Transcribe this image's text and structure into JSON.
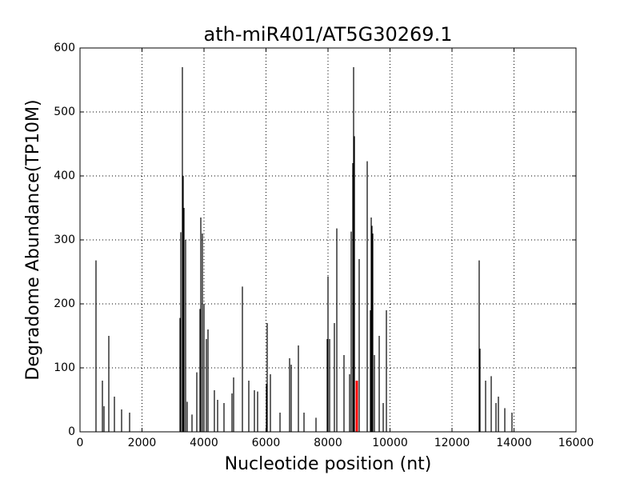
{
  "chart_data": {
    "type": "stem",
    "title": "ath-miR401/AT5G30269.1",
    "xlabel": "Nucleotide position (nt)",
    "ylabel": "Degradome Abundance(TP10M)",
    "xlim": [
      0,
      16000
    ],
    "ylim": [
      0,
      600
    ],
    "xticks": [
      0,
      2000,
      4000,
      6000,
      8000,
      10000,
      12000,
      14000,
      16000
    ],
    "yticks": [
      0,
      100,
      200,
      300,
      400,
      500,
      600
    ],
    "grid": true,
    "series": [
      {
        "color": "#000000",
        "x": [
          516,
          723,
          774,
          929,
          1110,
          1342,
          1600,
          3226,
          3252,
          3303,
          3329,
          3355,
          3406,
          3458,
          3613,
          3768,
          3871,
          3897,
          3948,
          4000,
          4077,
          4129,
          4335,
          4439,
          4645,
          4903,
          4955,
          5239,
          5445,
          5626,
          5729,
          6013,
          6039,
          6142,
          6452,
          6761,
          6813,
          7045,
          7226,
          7613,
          7974,
          8000,
          8052,
          8206,
          8284,
          8516,
          8697,
          8748,
          8800,
          8826,
          8852,
          9006,
          9265,
          9368,
          9394,
          9419,
          9445,
          9497,
          9652,
          9781,
          9884,
          12877,
          12903,
          13084,
          13265,
          13419,
          13497,
          13703,
          13935
        ],
        "values": [
          268,
          80,
          40,
          150,
          55,
          35,
          30,
          178,
          312,
          570,
          400,
          350,
          300,
          47,
          27,
          93,
          192,
          335,
          310,
          200,
          145,
          160,
          65,
          50,
          45,
          60,
          85,
          227,
          80,
          65,
          63,
          75,
          170,
          90,
          30,
          115,
          105,
          135,
          30,
          22,
          145,
          243,
          145,
          170,
          318,
          120,
          90,
          313,
          420,
          570,
          462,
          270,
          423,
          190,
          335,
          322,
          310,
          120,
          150,
          45,
          190,
          268,
          130,
          80,
          87,
          45,
          55,
          37,
          30
        ]
      },
      {
        "color": "#ff0000",
        "x": [
          8929
        ],
        "values": [
          80
        ]
      }
    ]
  }
}
